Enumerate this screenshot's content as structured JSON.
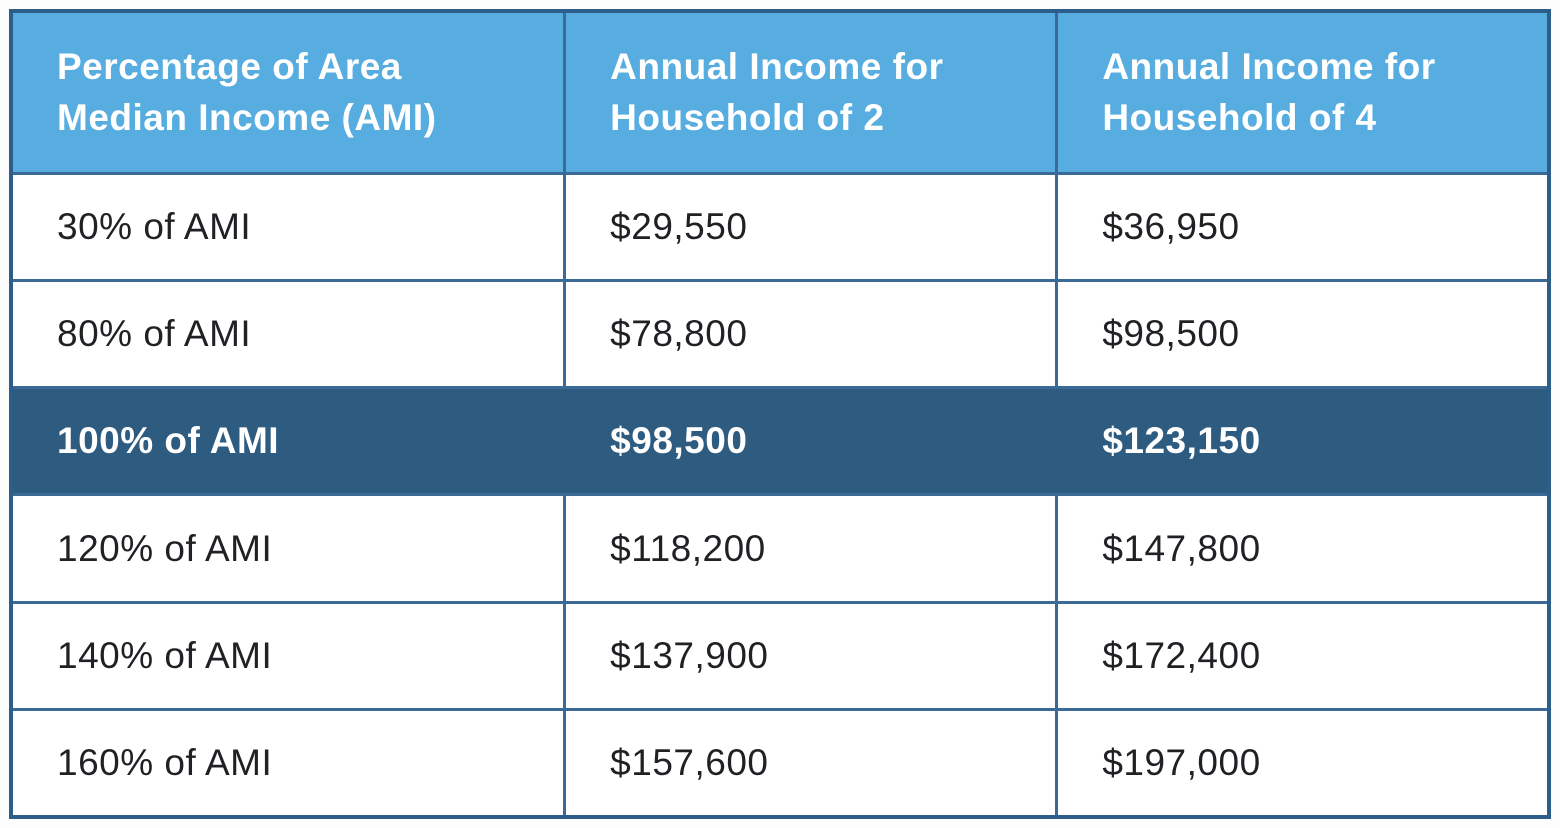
{
  "colors": {
    "header-bg": "#57ade0",
    "header-text": "#ffffff",
    "highlight-bg": "#2e5b80",
    "highlight-text": "#ffffff",
    "body-text": "#1f2124",
    "border": "#3c6a96",
    "outer-border": "#2d5d89",
    "row-bg": "#ffffff",
    "page-bg": "#fcfcfd"
  },
  "chart_data": {
    "type": "table",
    "columns": [
      "Percentage of Area Median Income (AMI)",
      "Annual Income for Household of 2",
      "Annual Income for Household of 4"
    ],
    "rows": [
      [
        "30% of AMI",
        "$29,550",
        "$36,950"
      ],
      [
        "80% of AMI",
        "$78,800",
        "$98,500"
      ],
      [
        "100% of AMI",
        "$98,500",
        "$123,150"
      ],
      [
        "120% of AMI",
        "$118,200",
        "$147,800"
      ],
      [
        "140% of AMI",
        "$137,900",
        "$172,400"
      ],
      [
        "160% of AMI",
        "$157,600",
        "$197,000"
      ]
    ],
    "highlighted_row_index": 2,
    "highlighted_row_label": "100% of AMI",
    "layout_hints": {
      "header_style": "light-blue background, white bold text",
      "highlight_style": "dark navy background, white bold text, no internal column dividers",
      "grid": "steel-blue borders on all cells"
    }
  }
}
